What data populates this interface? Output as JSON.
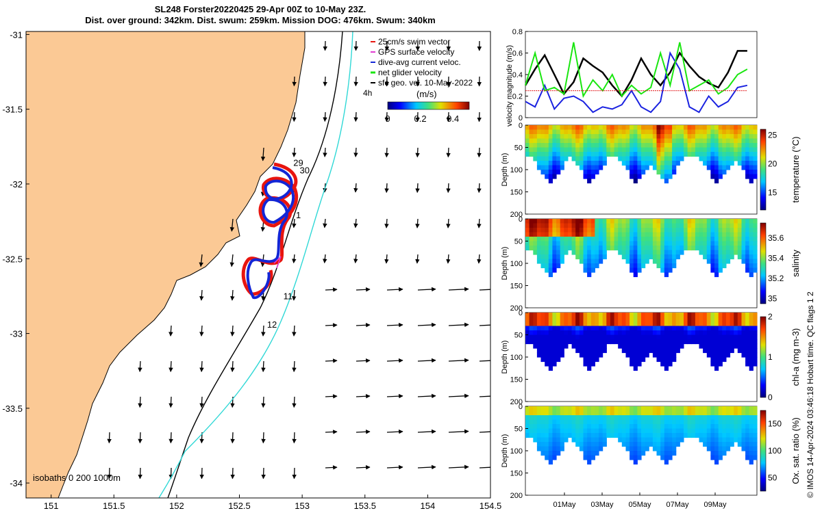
{
  "title": {
    "line1": "SL248 Forster20220425 29-Apr 00Z to 10-May 23Z.",
    "line2": "Dist. over ground: 342km. Dist. swum: 259km. Mission DOG: 476km. Swum: 340km"
  },
  "credit": "© IMOS 14-Apr-2024 03:46:18 Hobart time. QC flags 1  2",
  "colors": {
    "land": "#fbc995",
    "track_red": "#e8150f",
    "track_blue": "#1326d6",
    "isobath_200": "#000000",
    "isobath_1000": "#2fd8d6",
    "vel_black": "#000000",
    "vel_blue": "#1a22e0",
    "vel_green": "#19e60f",
    "vel_red": "#e31a1c"
  },
  "chart_data": [
    {
      "type": "scatter",
      "name": "map",
      "xticks": [
        "151",
        "151.5",
        "152",
        "152.5",
        "153",
        "153.5",
        "154",
        "154.5"
      ],
      "yticks": [
        "-31",
        "-31.5",
        "-32",
        "-32.5",
        "-33",
        "-33.5",
        "-34"
      ],
      "xlim": [
        150.8,
        154.5
      ],
      "ylim": [
        -34.1,
        -30.98
      ],
      "legend": [
        "25cm/s swim vector",
        "GPS surface velocity",
        "dive-avg current veloc.",
        "net glider velocity",
        "sfc geo. vel. 10-May-2022"
      ],
      "colorbar": {
        "label": "(m/s)",
        "ticks": [
          "0",
          "0.2",
          "0.4"
        ],
        "range": [
          0,
          0.5
        ]
      },
      "scale_label": "4h",
      "day_labels": [
        {
          "text": "29",
          "lon": 152.93,
          "lat": -31.88
        },
        {
          "text": "30",
          "lon": 152.98,
          "lat": -31.93
        },
        {
          "text": "1",
          "lon": 152.95,
          "lat": -32.23
        },
        {
          "text": "11",
          "lon": 152.85,
          "lat": -32.77
        },
        {
          "text": "12",
          "lon": 152.72,
          "lat": -32.96
        }
      ],
      "isobath_label": "isobaths  0  200  1000m"
    },
    {
      "type": "line",
      "name": "velocity",
      "ylabel": "velocity magnitude (m/s)",
      "ylim": [
        0,
        0.8
      ],
      "yticks": [
        "0",
        "0.2",
        "0.4",
        "0.6",
        "0.8"
      ],
      "x": [
        0,
        0.5,
        1,
        1.5,
        2,
        2.5,
        3,
        3.5,
        4,
        4.5,
        5,
        5.5,
        6,
        6.5,
        7,
        7.5,
        8,
        8.5,
        9,
        9.5,
        10,
        10.5,
        11,
        11.5
      ],
      "series": [
        {
          "color": "black",
          "values": [
            0.3,
            0.45,
            0.58,
            0.4,
            0.22,
            0.33,
            0.55,
            0.48,
            0.42,
            0.3,
            0.2,
            0.35,
            0.55,
            0.4,
            0.3,
            0.42,
            0.6,
            0.48,
            0.38,
            0.32,
            0.28,
            0.42,
            0.62,
            0.62
          ]
        },
        {
          "color": "blue",
          "values": [
            0.15,
            0.1,
            0.3,
            0.08,
            0.18,
            0.2,
            0.15,
            0.05,
            0.1,
            0.08,
            0.12,
            0.25,
            0.1,
            0.05,
            0.15,
            0.6,
            0.45,
            0.1,
            0.05,
            0.2,
            0.1,
            0.15,
            0.28,
            0.3
          ]
        },
        {
          "color": "green",
          "values": [
            0.3,
            0.6,
            0.25,
            0.28,
            0.22,
            0.7,
            0.2,
            0.35,
            0.25,
            0.4,
            0.2,
            0.3,
            0.22,
            0.28,
            0.6,
            0.3,
            0.7,
            0.25,
            0.3,
            0.35,
            0.22,
            0.28,
            0.4,
            0.45
          ]
        },
        {
          "color": "red",
          "values": [
            0.25,
            0.25,
            0.25,
            0.25,
            0.25,
            0.25,
            0.25,
            0.25,
            0.25,
            0.25,
            0.25,
            0.25,
            0.25,
            0.25,
            0.25,
            0.25,
            0.25,
            0.25,
            0.25,
            0.25,
            0.25,
            0.25,
            0.25,
            0.25
          ]
        }
      ]
    },
    {
      "type": "heatmap",
      "name": "temperature",
      "ylabel": "Depth (m)",
      "cbar_label": "temperature (°C)",
      "cbar_ticks": [
        "25",
        "20",
        "15"
      ],
      "cbar_range": [
        12,
        26
      ]
    },
    {
      "type": "heatmap",
      "name": "salinity",
      "ylabel": "Depth (m)",
      "cbar_label": "salinity",
      "cbar_ticks": [
        "35.6",
        "35.4",
        "35.2",
        "35"
      ],
      "cbar_range": [
        34.95,
        35.75
      ]
    },
    {
      "type": "heatmap",
      "name": "chl",
      "ylabel": "Depth (m)",
      "cbar_label": "chl-a (mg m-3)",
      "cbar_ticks": [
        "2",
        "1",
        "0"
      ],
      "cbar_range": [
        0,
        2
      ]
    },
    {
      "type": "heatmap",
      "name": "oxygen",
      "ylabel": "Depth (m)",
      "cbar_label": "Ox. sat. ratio (%)",
      "cbar_ticks": [
        "150",
        "100",
        "50"
      ],
      "cbar_range": [
        25,
        175
      ]
    }
  ],
  "depth_ticks": [
    "0",
    "50",
    "100",
    "150",
    "200"
  ],
  "date_ticks": [
    "01May",
    "03May",
    "05May",
    "07May",
    "09May"
  ]
}
